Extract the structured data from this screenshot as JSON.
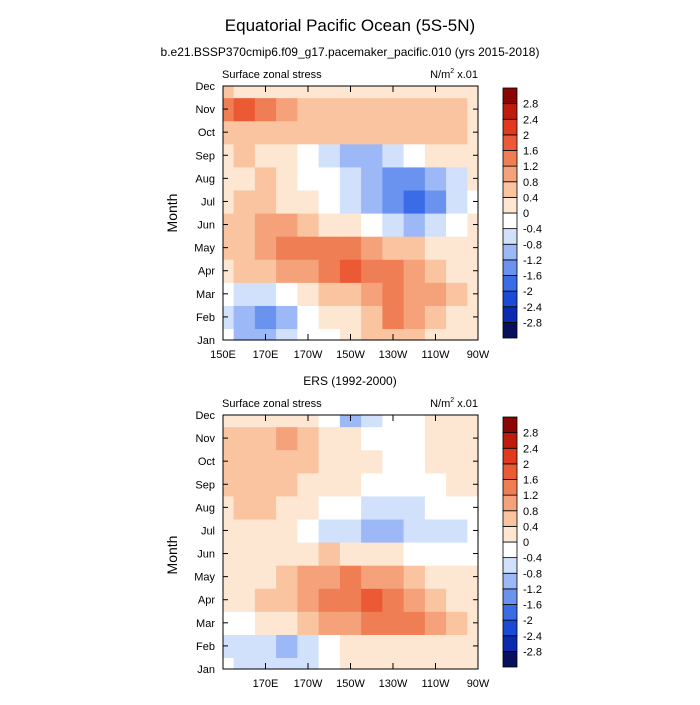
{
  "title": "Equatorial Pacific Ocean (5S-5N)",
  "colorbar": {
    "colors": [
      "#08105e",
      "#0a2ab0",
      "#1b4bd6",
      "#3a6ce8",
      "#6a93f0",
      "#9db8f6",
      "#d2e1fb",
      "#ffffff",
      "#fde6d2",
      "#f9c49f",
      "#f5a27b",
      "#f07e55",
      "#ec5a35",
      "#e1391d",
      "#bf1b0d",
      "#8c0505"
    ],
    "labels": [
      "2.8",
      "2.4",
      "2",
      "1.6",
      "1.2",
      "0.8",
      "0.4",
      "0",
      "-0.4",
      "-0.8",
      "-1.2",
      "-1.6",
      "-2",
      "-2.4",
      "-2.8"
    ]
  },
  "chart_data": [
    {
      "type": "heatmap",
      "subtitle": "b.e21.BSSP370cmip6.f09_g17.pacemaker_pacific.010 (yrs 2015-2018)",
      "left_label": "Surface zonal stress",
      "right_label_main": "N/m",
      "right_label_sup": "2",
      "right_label_tail": " x.01",
      "ylabel": "Month",
      "xlim": [
        150,
        270
      ],
      "months": [
        "Jan",
        "Feb",
        "Mar",
        "Apr",
        "May",
        "Jun",
        "Jul",
        "Aug",
        "Sep",
        "Oct",
        "Nov",
        "Dec"
      ],
      "xticks": [
        "150E",
        "170E",
        "170W",
        "150W",
        "130W",
        "110W",
        "90W"
      ],
      "tick_lon": [
        150,
        170,
        190,
        210,
        230,
        250,
        270
      ],
      "lon": [
        150,
        160,
        170,
        180,
        190,
        200,
        210,
        220,
        230,
        240,
        250,
        260,
        270
      ],
      "values": [
        [
          -0.3,
          -0.9,
          -1.2,
          -0.6,
          -0.2,
          -0.1,
          0.2,
          0.5,
          0.6,
          0.4,
          0.1,
          0.0,
          0.1
        ],
        [
          -0.5,
          -1.2,
          -1.4,
          -1.0,
          -0.4,
          0.0,
          0.3,
          0.7,
          1.2,
          0.9,
          0.5,
          0.2,
          0.1
        ],
        [
          -0.2,
          -0.7,
          -0.7,
          -0.1,
          0.2,
          0.4,
          0.7,
          1.0,
          1.2,
          1.1,
          0.9,
          0.5,
          0.2
        ],
        [
          0.3,
          0.4,
          0.6,
          0.9,
          1.1,
          1.3,
          1.6,
          1.5,
          1.2,
          1.0,
          0.6,
          0.3,
          0.1
        ],
        [
          0.4,
          0.7,
          0.9,
          1.2,
          1.4,
          1.4,
          1.2,
          1.0,
          0.7,
          0.4,
          0.2,
          0.1,
          0.0
        ],
        [
          0.4,
          0.7,
          0.8,
          0.8,
          0.6,
          0.3,
          0.0,
          -0.4,
          -0.8,
          -0.9,
          -0.7,
          -0.3,
          0.0
        ],
        [
          0.3,
          0.5,
          0.5,
          0.3,
          0.0,
          -0.3,
          -0.7,
          -1.2,
          -1.6,
          -1.9,
          -1.5,
          -0.8,
          -0.2
        ],
        [
          0.2,
          0.3,
          0.4,
          0.2,
          -0.1,
          -0.4,
          -0.8,
          -1.2,
          -1.4,
          -1.4,
          -1.0,
          -0.5,
          0.0
        ],
        [
          0.3,
          0.4,
          0.3,
          0.1,
          -0.3,
          -0.7,
          -1.0,
          -0.9,
          -0.6,
          -0.3,
          0.0,
          0.2,
          0.2
        ],
        [
          0.6,
          0.5,
          0.5,
          0.5,
          0.5,
          0.4,
          0.5,
          0.6,
          0.6,
          0.7,
          0.6,
          0.4,
          0.3
        ],
        [
          1.2,
          1.6,
          1.4,
          0.8,
          0.5,
          0.5,
          0.6,
          0.7,
          0.6,
          0.6,
          0.5,
          0.4,
          0.3
        ],
        [
          0.4,
          0.3,
          0.2,
          0.2,
          0.2,
          0.1,
          0.1,
          0.0,
          0.0,
          0.1,
          0.2,
          0.2,
          0.0
        ]
      ]
    },
    {
      "type": "heatmap",
      "subtitle": "ERS (1992-2000)",
      "left_label": "Surface zonal stress",
      "right_label_main": "N/m",
      "right_label_sup": "2",
      "right_label_tail": " x.01",
      "ylabel": "Month",
      "xlim": [
        150,
        270
      ],
      "months": [
        "Jan",
        "Feb",
        "Mar",
        "Apr",
        "May",
        "Jun",
        "Jul",
        "Aug",
        "Sep",
        "Oct",
        "Nov",
        "Dec"
      ],
      "xticks": [
        "170E",
        "170W",
        "150W",
        "130W",
        "110W",
        "90W"
      ],
      "tick_lon": [
        170,
        190,
        210,
        230,
        250,
        270
      ],
      "lon": [
        150,
        160,
        170,
        180,
        190,
        200,
        210,
        220,
        230,
        240,
        250,
        260,
        270
      ],
      "values": [
        [
          -0.3,
          -0.6,
          -0.8,
          -0.7,
          -0.5,
          -0.2,
          0.0,
          0.1,
          0.1,
          0.0,
          0.0,
          0.1,
          0.0
        ],
        [
          -0.5,
          -0.6,
          -0.8,
          -1.0,
          -0.6,
          -0.3,
          0.0,
          0.2,
          0.3,
          0.2,
          0.1,
          0.0,
          0.0
        ],
        [
          -0.1,
          -0.2,
          0.0,
          0.2,
          0.5,
          0.8,
          1.0,
          1.3,
          1.4,
          1.2,
          0.9,
          0.5,
          0.1
        ],
        [
          0.0,
          0.2,
          0.4,
          0.6,
          0.9,
          1.2,
          1.5,
          1.6,
          1.3,
          0.9,
          0.6,
          0.3,
          0.1
        ],
        [
          0.1,
          0.2,
          0.3,
          0.5,
          0.8,
          1.1,
          1.3,
          1.1,
          0.8,
          0.5,
          0.3,
          0.1,
          0.0
        ],
        [
          0.1,
          0.2,
          0.2,
          0.2,
          0.3,
          0.4,
          0.3,
          0.2,
          0.0,
          -0.1,
          -0.2,
          -0.2,
          -0.1
        ],
        [
          0.2,
          0.3,
          0.3,
          0.1,
          -0.2,
          -0.5,
          -0.8,
          -1.0,
          -0.9,
          -0.8,
          -0.7,
          -0.6,
          -0.3
        ],
        [
          0.3,
          0.4,
          0.4,
          0.3,
          0.1,
          -0.2,
          -0.4,
          -0.6,
          -0.6,
          -0.5,
          -0.4,
          -0.3,
          -0.1
        ],
        [
          0.4,
          0.5,
          0.5,
          0.4,
          0.3,
          0.1,
          0.0,
          -0.2,
          -0.3,
          -0.2,
          -0.1,
          0.0,
          0.0
        ],
        [
          0.5,
          0.6,
          0.6,
          0.6,
          0.5,
          0.3,
          0.2,
          0.0,
          -0.3,
          -0.2,
          0.0,
          0.0,
          0.1
        ],
        [
          0.4,
          0.5,
          0.7,
          0.8,
          0.6,
          0.3,
          0.0,
          -0.2,
          -0.4,
          -0.3,
          0.0,
          0.1,
          0.0
        ],
        [
          0.3,
          0.3,
          0.3,
          0.2,
          0.0,
          -0.3,
          -0.9,
          -0.7,
          -0.4,
          -0.2,
          0.0,
          0.1,
          0.0
        ]
      ]
    }
  ]
}
